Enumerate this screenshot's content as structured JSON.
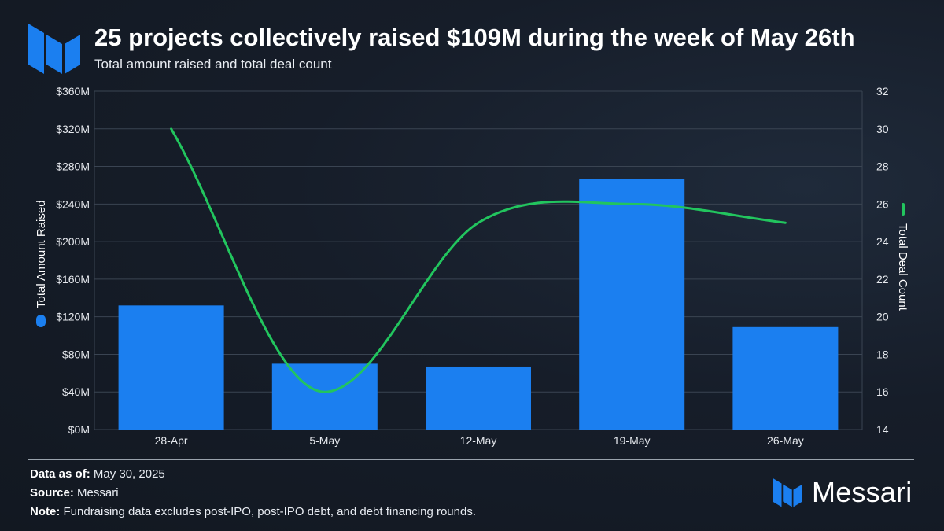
{
  "header": {
    "title": "25 projects collectively raised $109M during the week of May 26th",
    "subtitle": "Total amount raised and total deal count"
  },
  "colors": {
    "bar": "#1b7ff0",
    "line": "#22c55e",
    "logo": "#1b7ff0",
    "grid": "#3a4452"
  },
  "icons": {
    "top_logo": "messari-logo-icon",
    "footer_logo": "messari-logo-icon"
  },
  "chart_data": {
    "type": "bar",
    "categories": [
      "28-Apr",
      "5-May",
      "12-May",
      "19-May",
      "26-May"
    ],
    "series": [
      {
        "name": "Total Amount Raised",
        "type": "bar",
        "axis": "left",
        "values": [
          132,
          70,
          67,
          267,
          109
        ]
      },
      {
        "name": "Total Deal Count",
        "type": "line",
        "axis": "right",
        "values": [
          30,
          16,
          25,
          26,
          25
        ]
      }
    ],
    "ylabel": "Total Amount Raised",
    "y2label": "Total Deal Count",
    "ylim": [
      0,
      360
    ],
    "y2lim": [
      14,
      32
    ],
    "yticks": [
      "$0M",
      "$40M",
      "$80M",
      "$120M",
      "$160M",
      "$200M",
      "$240M",
      "$280M",
      "$320M",
      "$360M"
    ],
    "y2ticks": [
      "14",
      "16",
      "18",
      "20",
      "22",
      "24",
      "26",
      "28",
      "30",
      "32"
    ],
    "grid": true
  },
  "footer": {
    "data_as_of_label": "Data as of:",
    "data_as_of_value": "May 30, 2025",
    "source_label": "Source:",
    "source_value": "Messari",
    "note_label": "Note:",
    "note_value": "Fundraising data excludes post-IPO, post-IPO debt, and debt financing rounds."
  },
  "brand": {
    "name": "Messari"
  }
}
